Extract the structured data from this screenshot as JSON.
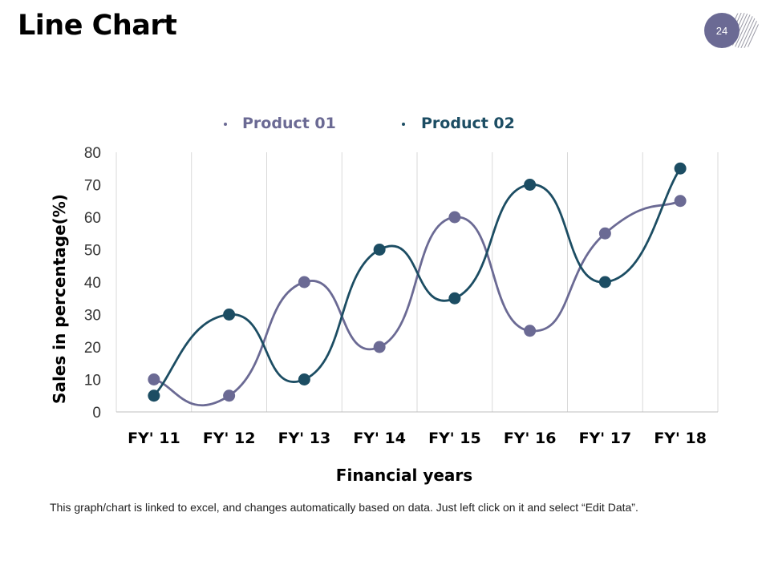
{
  "slide": {
    "title": "Line Chart",
    "page_number": "24",
    "footnote": "This graph/chart is linked to excel, and changes automatically based on data. Just left click on it and select “Edit Data”."
  },
  "colors": {
    "product_01": "#6b6a94",
    "product_02": "#1c4d63",
    "grid": "#d9d9d9",
    "axis_text": "#000000"
  },
  "chart_data": {
    "type": "line",
    "title": "",
    "xlabel": "Financial years",
    "ylabel": "Sales in percentage(%)",
    "categories": [
      "FY' 11",
      "FY' 12",
      "FY' 13",
      "FY' 14",
      "FY' 15",
      "FY' 16",
      "FY' 17",
      "FY' 18"
    ],
    "ylim": [
      0,
      80
    ],
    "yticks": [
      0,
      10,
      20,
      30,
      40,
      50,
      60,
      70,
      80
    ],
    "grid": "vertical",
    "legend": "top-center",
    "smooth": true,
    "series": [
      {
        "name": "Product 01",
        "values": [
          10,
          5,
          40,
          20,
          60,
          25,
          55,
          65
        ]
      },
      {
        "name": "Product 02",
        "values": [
          5,
          30,
          10,
          50,
          35,
          70,
          40,
          75
        ]
      }
    ]
  }
}
